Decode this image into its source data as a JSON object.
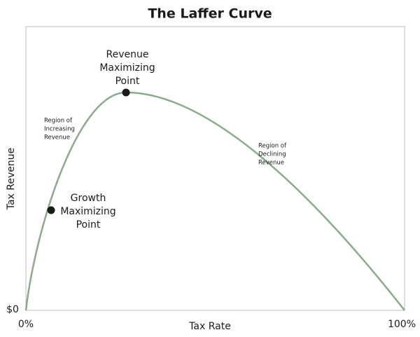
{
  "title": "The Laffer Curve",
  "y_axis": {
    "label": "Tax Revenue",
    "origin_label": "$0"
  },
  "x_axis": {
    "label": "Tax Rate",
    "start_label": "0%",
    "end_label": "100%"
  },
  "annotations": {
    "revenue_point": [
      "Revenue",
      "Maximizing",
      "Point"
    ],
    "growth_point": [
      "Growth",
      "Maximizing",
      "Point"
    ],
    "increasing_region": [
      "Region of",
      "Increasing",
      "Revenue"
    ],
    "declining_region": [
      "Region of",
      "Declining",
      "Revenue"
    ]
  }
}
